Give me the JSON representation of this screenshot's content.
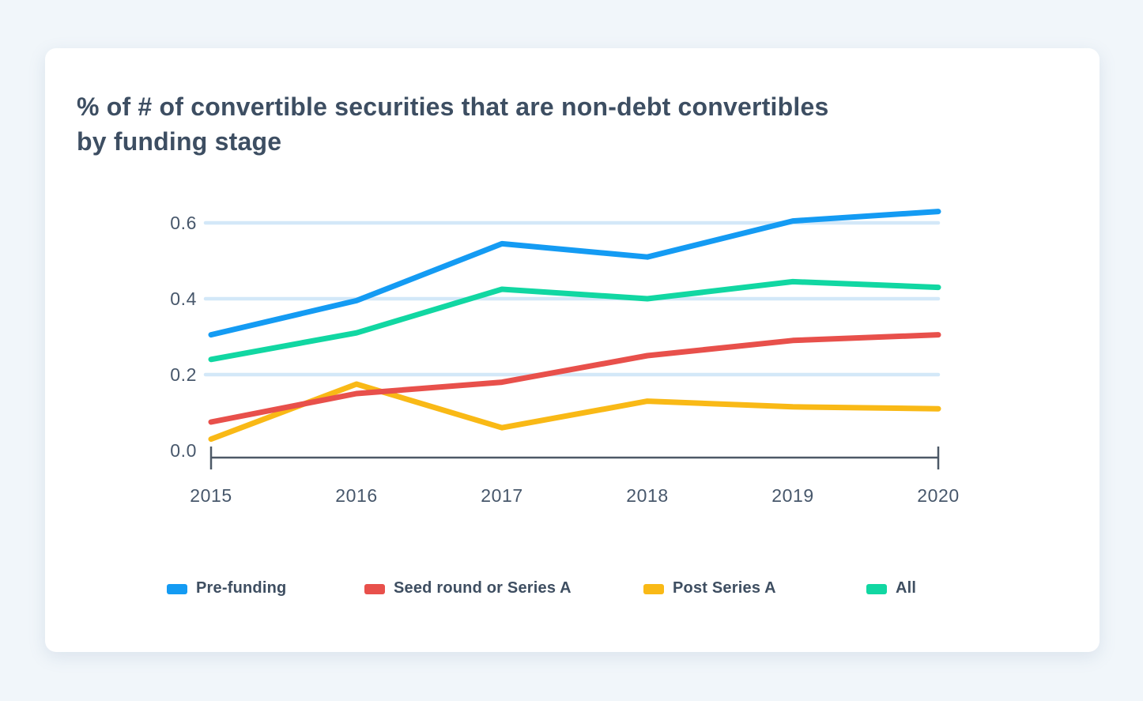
{
  "page": {
    "background_color": "#f1f6fa",
    "card_color": "#ffffff"
  },
  "header": {
    "title": "% of # of convertible securities that are non-debt convertibles by funding stage",
    "title_line1": "% of # of convertible securities that are non-debt convertibles",
    "title_line2": "by funding stage"
  },
  "chart_data": {
    "type": "line",
    "title": "% of # of convertible securities that are non-debt convertibles by funding stage",
    "x": [
      "2015",
      "2016",
      "2017",
      "2018",
      "2019",
      "2020"
    ],
    "series": [
      {
        "name": "Pre-funding",
        "color": "#149bf3",
        "values": [
          0.305,
          0.395,
          0.545,
          0.51,
          0.605,
          0.63
        ]
      },
      {
        "name": "Seed round or Series A",
        "color": "#e8504b",
        "values": [
          0.075,
          0.15,
          0.18,
          0.25,
          0.29,
          0.305
        ]
      },
      {
        "name": "Post Series A",
        "color": "#f9b916",
        "values": [
          0.03,
          0.175,
          0.06,
          0.13,
          0.115,
          0.11
        ]
      },
      {
        "name": "All",
        "color": "#11d7a2",
        "values": [
          0.24,
          0.31,
          0.425,
          0.4,
          0.445,
          0.43
        ]
      }
    ],
    "xlabel": "",
    "ylabel": "",
    "ylim": [
      0,
      0.65
    ],
    "yticks": [
      0,
      0.2,
      0.4,
      0.6
    ],
    "ytick_labels": [
      "0.0",
      "0.2",
      "0.4",
      "0.6"
    ],
    "grid": "horizontal",
    "gridline_color": "#d3e8f8",
    "axis_color": "#4d5967",
    "tick_label_color": "#47576b",
    "legend_position": "bottom"
  }
}
